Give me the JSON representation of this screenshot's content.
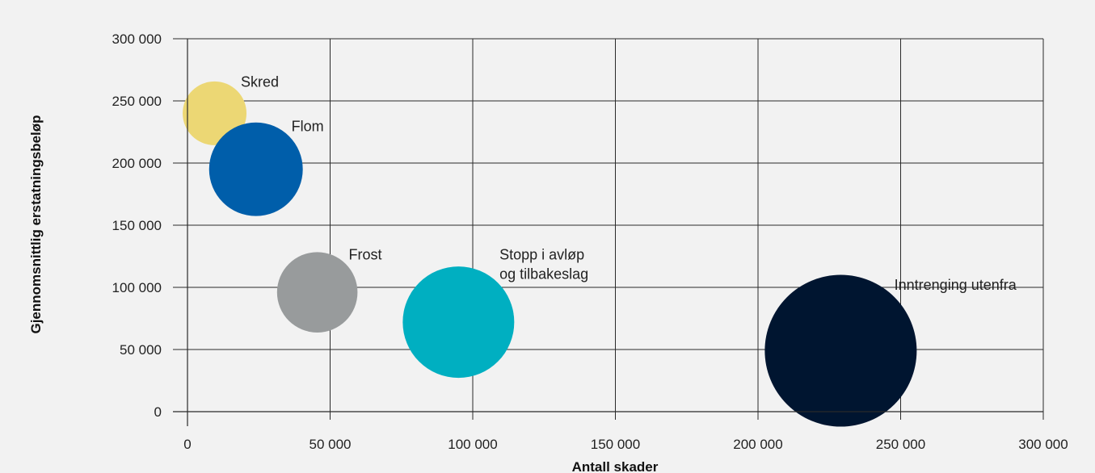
{
  "chart_data": {
    "type": "bubble",
    "xlabel": "Antall skader",
    "ylabel": "Gjennomsnittlig erstatningsbeløp",
    "xlim": [
      0,
      300000
    ],
    "ylim": [
      0,
      300000
    ],
    "x_ticks": [
      "0",
      "50 000",
      "100 000",
      "150 000",
      "200 000",
      "250 000",
      "300 000"
    ],
    "y_ticks": [
      "0",
      "50 000",
      "100 000",
      "150 000",
      "200 000",
      "250 000",
      "300 000"
    ],
    "grid": true,
    "legend": "none",
    "points": [
      {
        "label": [
          "Skred"
        ],
        "x": 9500,
        "y": 240000,
        "size": 3.9,
        "color": "#ecd774"
      },
      {
        "label": [
          "Flom"
        ],
        "x": 24000,
        "y": 195000,
        "size": 8.4,
        "color": "#005eaa"
      },
      {
        "label": [
          "Frost"
        ],
        "x": 45500,
        "y": 96000,
        "size": 6.2,
        "color": "#989b9c"
      },
      {
        "label": [
          "Stopp i avløp",
          "og tilbakeslag"
        ],
        "x": 95000,
        "y": 72000,
        "size": 11.9,
        "color": "#00afc1"
      },
      {
        "label": [
          "Inntrenging utenfra"
        ],
        "x": 229000,
        "y": 49000,
        "size": 22.1,
        "color": "#001530"
      }
    ]
  }
}
